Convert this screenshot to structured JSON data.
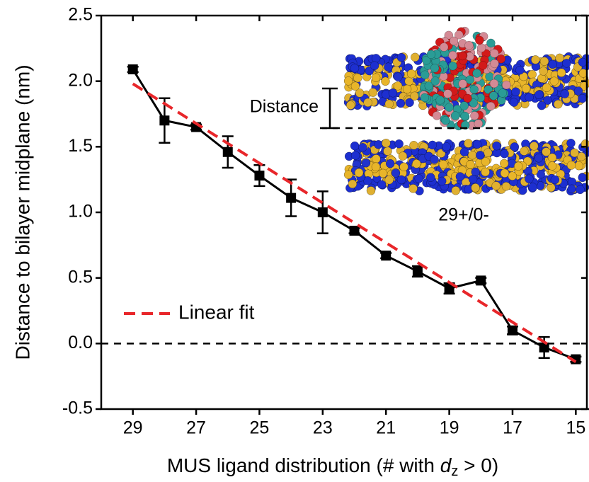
{
  "chart_data": {
    "type": "line",
    "xlabel": {
      "text": "MUS ligand distribution (# with ",
      "var": "d",
      "sub": "z",
      "after": " > 0)"
    },
    "ylabel": "Distance to bilayer midplane (nm)",
    "x": [
      29,
      28,
      27,
      26,
      25,
      24,
      23,
      22,
      21,
      20,
      19,
      18,
      17,
      16,
      15
    ],
    "series": [
      {
        "color": "#000000",
        "values": [
          2.09,
          1.7,
          1.65,
          1.46,
          1.28,
          1.11,
          1.0,
          0.86,
          0.67,
          0.55,
          0.42,
          0.48,
          0.1,
          -0.03,
          -0.12
        ],
        "errors": [
          0.02,
          0.17,
          0.02,
          0.12,
          0.08,
          0.14,
          0.16,
          0.02,
          0.02,
          0.04,
          0.04,
          0.02,
          0.03,
          0.08,
          0.02
        ]
      },
      {
        "name": "Linear fit",
        "color": "#e8262a",
        "dashed": true,
        "x": [
          29,
          15
        ],
        "values": [
          1.98,
          -0.14
        ]
      }
    ],
    "reference_line": 0,
    "xlim": [
      30,
      14.65
    ],
    "ylim": [
      -0.5,
      2.5
    ],
    "xticks": [
      29,
      27,
      25,
      23,
      21,
      19,
      17,
      15
    ],
    "yticks": [
      -0.5,
      {
        "value": 0,
        "label": "0.0"
      },
      0.5,
      {
        "value": 1,
        "label": "1.0"
      },
      1.5,
      {
        "value": 2,
        "label": "2.0"
      },
      2.5
    ],
    "inset": {
      "distance_label": "Distance",
      "label": "29+/0-"
    }
  }
}
